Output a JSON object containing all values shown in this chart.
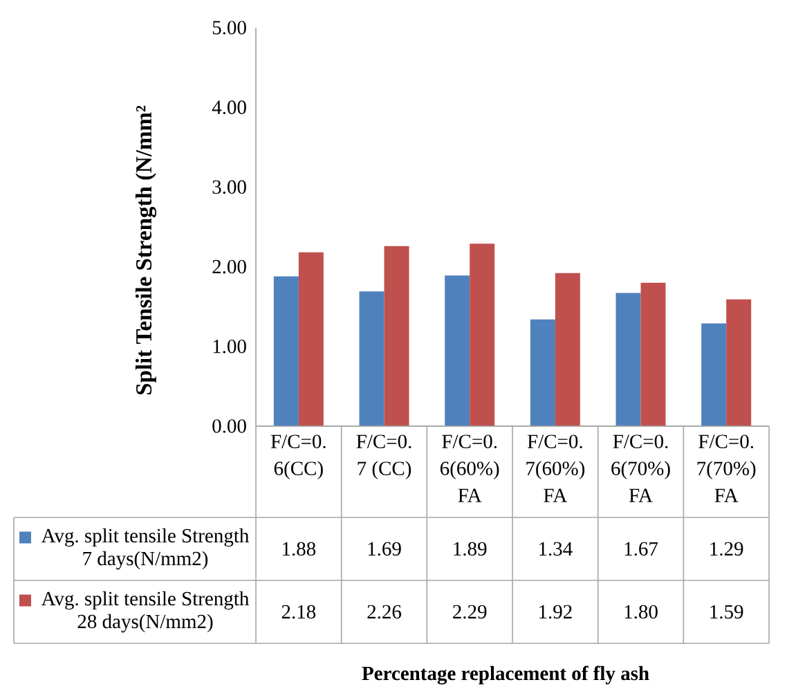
{
  "chart_data": {
    "type": "bar",
    "ylabel": "Split Tensile Strength (N/mm²",
    "categories": [
      "F/C=0.6(CC)",
      "F/C=0.7 (CC)",
      "F/C=0.6(60%)FA",
      "F/C=0.7(60%) FA",
      "F/C=0.6(70%) FA",
      "F/C=0.7(70%) FA"
    ],
    "series": [
      {
        "name": "Avg. split tensile Strength 7 days(N/mm2)",
        "color": "#4f81bd",
        "values": [
          1.88,
          1.69,
          1.89,
          1.34,
          1.67,
          1.29
        ],
        "value_labels": [
          "1.88",
          "1.69",
          "1.89",
          "1.34",
          "1.67",
          "1.29"
        ]
      },
      {
        "name": "Avg. split tensile Strength 28 days(N/mm2)",
        "color": "#c0504d",
        "values": [
          2.18,
          2.26,
          2.29,
          1.92,
          1.8,
          1.59
        ],
        "value_labels": [
          "2.18",
          "2.26",
          "2.29",
          "1.92",
          "1.80",
          "1.59"
        ]
      }
    ],
    "ylim": [
      0,
      5
    ],
    "yticks": [
      {
        "value": 0,
        "label": "0.00"
      },
      {
        "value": 1,
        "label": "1.00"
      },
      {
        "value": 2,
        "label": "2.00"
      },
      {
        "value": 3,
        "label": "3.00"
      },
      {
        "value": 4,
        "label": "4.00"
      },
      {
        "value": 5,
        "label": "5.00"
      }
    ],
    "legend": "bottom",
    "annotations": [
      "Percentage replacement of fly ash"
    ]
  }
}
